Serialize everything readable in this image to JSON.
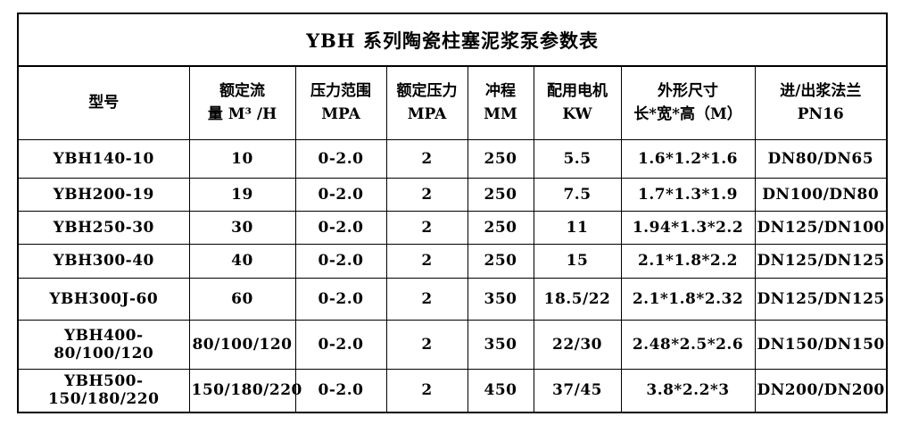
{
  "table": {
    "title": "YBH 系列陶瓷柱塞泥浆泵参数表",
    "columns": [
      {
        "line1": "型号",
        "line2": ""
      },
      {
        "line1": "额定流",
        "line2": "量 M³ /H"
      },
      {
        "line1": "压力范围",
        "line2": "MPA"
      },
      {
        "line1": "额定压力",
        "line2": "MPA"
      },
      {
        "line1": "冲程",
        "line2": "MM"
      },
      {
        "line1": "配用电机",
        "line2": "KW"
      },
      {
        "line1": "外形尺寸",
        "line2": "长*宽*高（M）"
      },
      {
        "line1": "进/出浆法兰",
        "line2": "PN16"
      }
    ],
    "rows": [
      [
        "YBH140-10",
        "10",
        "0-2.0",
        "2",
        "250",
        "5.5",
        "1.6*1.2*1.6",
        "DN80/DN65"
      ],
      [
        "YBH200-19",
        "19",
        "0-2.0",
        "2",
        "250",
        "7.5",
        "1.7*1.3*1.9",
        "DN100/DN80"
      ],
      [
        "YBH250-30",
        "30",
        "0-2.0",
        "2",
        "250",
        "11",
        "1.94*1.3*2.2",
        "DN125/DN100"
      ],
      [
        "YBH300-40",
        "40",
        "0-2.0",
        "2",
        "250",
        "15",
        "2.1*1.8*2.2",
        "DN125/DN125"
      ],
      [
        "YBH300J-60",
        "60",
        "0-2.0",
        "2",
        "350",
        "18.5/22",
        "2.1*1.8*2.32",
        "DN125/DN125"
      ],
      [
        "YBH400-80/100/120",
        "80/100/120",
        "0-2.0",
        "2",
        "350",
        "22/30",
        "2.48*2.5*2.6",
        "DN150/DN150"
      ],
      [
        "YBH500-150/180/220",
        "150/180/220",
        "0-2.0",
        "2",
        "450",
        "37/45",
        "3.8*2.2*3",
        "DN200/DN200"
      ]
    ],
    "colors": {
      "border": "#000000",
      "text": "#000000",
      "background": "#ffffff"
    }
  }
}
